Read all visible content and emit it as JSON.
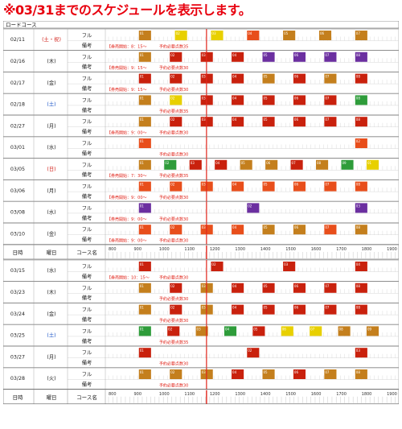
{
  "page_title": "※03/31までのスケジュールを表示します。",
  "course_label": "ロードコース",
  "columns": {
    "date": "日時",
    "weekday": "曜日",
    "course": "コース名"
  },
  "hours": [
    "800",
    "900",
    "1000",
    "1100",
    "1200",
    "1300",
    "1400",
    "1500",
    "1600",
    "1700",
    "1800",
    "1900"
  ],
  "row_labels": {
    "full": "フル",
    "note": "備考"
  },
  "notice_label": "【券売開始：",
  "reserve_note": "予約必要点数",
  "palette": {
    "brown": "#c47f1d",
    "red": "#c9210d",
    "orange": "#e84e1b",
    "yellow": "#e8d000",
    "green": "#2e9c3a",
    "purple": "#6b2fa0",
    "highlight": "#e1251b",
    "weekend": "#d2231c"
  },
  "days": [
    {
      "date": "02/11",
      "wd": "(土・祝)",
      "wd_red": true,
      "blocks": [
        [
          "01",
          "brown",
          1
        ],
        [
          "02",
          "yellow",
          1
        ],
        [
          "03",
          "yellow",
          1
        ],
        [
          "04",
          "orange",
          1
        ],
        [
          "05",
          "brown",
          1
        ],
        [
          "06",
          "brown",
          1
        ],
        [
          "07",
          "brown",
          1
        ]
      ],
      "notice": "8：15～",
      "pts": "35"
    },
    {
      "date": "02/16",
      "wd": "(木)",
      "wd_red": false,
      "blocks": [
        [
          "01",
          "brown",
          1
        ],
        [
          "02",
          "red",
          1
        ],
        [
          "03",
          "red",
          1
        ],
        [
          "04",
          "red",
          1
        ],
        [
          "05",
          "purple",
          1
        ],
        [
          "06",
          "purple",
          1
        ],
        [
          "07",
          "purple",
          1
        ],
        [
          "08",
          "purple",
          1
        ]
      ],
      "notice": "9：15～",
      "pts": "30"
    },
    {
      "date": "02/17",
      "wd": "(金)",
      "wd_red": false,
      "blocks": [
        [
          "01",
          "red",
          1
        ],
        [
          "02",
          "red",
          1
        ],
        [
          "03",
          "red",
          1
        ],
        [
          "04",
          "red",
          1
        ],
        [
          "05",
          "brown",
          1
        ],
        [
          "06",
          "red",
          1
        ],
        [
          "07",
          "brown",
          1
        ],
        [
          "08",
          "red",
          1
        ]
      ],
      "notice": "9：15～",
      "pts": "30"
    },
    {
      "date": "02/18",
      "wd": "(土)",
      "wd_red": false,
      "wd_blue": true,
      "blocks": [
        [
          "01",
          "brown",
          1
        ],
        [
          "02",
          "yellow",
          1
        ],
        [
          "03",
          "red",
          1
        ],
        [
          "04",
          "red",
          1
        ],
        [
          "05",
          "red",
          1
        ],
        [
          "06",
          "red",
          1
        ],
        [
          "07",
          "red",
          1
        ],
        [
          "08",
          "green",
          1
        ]
      ],
      "notice": "",
      "pts": "35"
    },
    {
      "date": "02/27",
      "wd": "(月)",
      "wd_red": false,
      "blocks": [
        [
          "01",
          "brown",
          1
        ],
        [
          "02",
          "red",
          1
        ],
        [
          "03",
          "red",
          1
        ],
        [
          "04",
          "red",
          1
        ],
        [
          "05",
          "red",
          1
        ],
        [
          "06",
          "red",
          1
        ],
        [
          "07",
          "red",
          1
        ],
        [
          "08",
          "red",
          1
        ]
      ],
      "notice": "9：00～",
      "pts": "30"
    },
    {
      "date": "03/01",
      "wd": "(水)",
      "wd_red": false,
      "blocks": [
        [
          "01",
          "orange",
          1
        ],
        [
          "02",
          "orange",
          1
        ]
      ],
      "notice": "",
      "pts": "30"
    },
    {
      "date": "03/05",
      "wd": "(日)",
      "wd_red": true,
      "blocks": [
        [
          "01",
          "brown",
          1
        ],
        [
          "02",
          "green",
          1
        ],
        [
          "03",
          "red",
          1
        ],
        [
          "04",
          "red",
          1
        ],
        [
          "05",
          "brown",
          1
        ],
        [
          "06",
          "brown",
          1
        ],
        [
          "07",
          "red",
          1
        ],
        [
          "08",
          "brown",
          1
        ],
        [
          "09",
          "green",
          1
        ],
        [
          "01",
          "yellow",
          1
        ]
      ],
      "notice": "7：30～",
      "pts": "35"
    },
    {
      "date": "03/06",
      "wd": "(月)",
      "wd_red": false,
      "blocks": [
        [
          "01",
          "orange",
          1
        ],
        [
          "02",
          "orange",
          1
        ],
        [
          "03",
          "orange",
          1
        ],
        [
          "04",
          "orange",
          1
        ],
        [
          "05",
          "orange",
          1
        ],
        [
          "06",
          "orange",
          1
        ],
        [
          "07",
          "orange",
          1
        ],
        [
          "08",
          "orange",
          1
        ]
      ],
      "notice": "9：00～",
      "pts": "30"
    },
    {
      "date": "03/08",
      "wd": "(水)",
      "wd_red": false,
      "blocks": [
        [
          "01",
          "purple",
          1
        ],
        [
          "02",
          "purple",
          1
        ],
        [
          "03",
          "purple",
          1
        ]
      ],
      "notice": "9：00～",
      "pts": "30"
    },
    {
      "date": "03/10",
      "wd": "(金)",
      "wd_red": false,
      "blocks": [
        [
          "01",
          "orange",
          1
        ],
        [
          "02",
          "orange",
          1
        ],
        [
          "03",
          "orange",
          1
        ],
        [
          "04",
          "orange",
          1
        ],
        [
          "05",
          "brown",
          1
        ],
        [
          "06",
          "brown",
          1
        ],
        [
          "07",
          "orange",
          1
        ],
        [
          "08",
          "brown",
          1
        ]
      ],
      "notice": "9：00～",
      "pts": "30"
    },
    {
      "header": true
    },
    {
      "date": "03/15",
      "wd": "(水)",
      "wd_red": false,
      "blocks": [
        [
          "01",
          "red",
          1
        ],
        [
          "02",
          "red",
          1
        ],
        [
          "03",
          "red",
          1
        ],
        [
          "04",
          "red",
          1
        ]
      ],
      "notice": "10：15～",
      "pts": "30"
    },
    {
      "date": "03/23",
      "wd": "(木)",
      "wd_red": false,
      "blocks": [
        [
          "01",
          "brown",
          1
        ],
        [
          "02",
          "red",
          1
        ],
        [
          "03",
          "brown",
          1
        ],
        [
          "04",
          "red",
          1
        ],
        [
          "05",
          "red",
          1
        ],
        [
          "06",
          "red",
          1
        ],
        [
          "07",
          "red",
          1
        ],
        [
          "08",
          "red",
          1
        ]
      ],
      "notice": "",
      "pts": "30"
    },
    {
      "date": "03/24",
      "wd": "(金)",
      "wd_red": false,
      "blocks": [
        [
          "01",
          "brown",
          1
        ],
        [
          "02",
          "red",
          1
        ],
        [
          "03",
          "brown",
          1
        ],
        [
          "04",
          "red",
          1
        ],
        [
          "05",
          "red",
          1
        ],
        [
          "06",
          "red",
          1
        ],
        [
          "07",
          "red",
          1
        ],
        [
          "08",
          "red",
          1
        ]
      ],
      "notice": "",
      "pts": "30"
    },
    {
      "date": "03/25",
      "wd": "(土)",
      "wd_red": false,
      "wd_blue": true,
      "blocks": [
        [
          "01",
          "green",
          1
        ],
        [
          "02",
          "red",
          1
        ],
        [
          "03",
          "brown",
          1
        ],
        [
          "04",
          "green",
          1
        ],
        [
          "05",
          "red",
          1
        ],
        [
          "06",
          "yellow",
          1
        ],
        [
          "07",
          "yellow",
          1
        ],
        [
          "08",
          "brown",
          1
        ],
        [
          "09",
          "brown",
          1
        ]
      ],
      "notice": "",
      "pts": "35"
    },
    {
      "date": "03/27",
      "wd": "(月)",
      "wd_red": false,
      "blocks": [
        [
          "01",
          "red",
          1
        ],
        [
          "02",
          "red",
          1
        ],
        [
          "03",
          "red",
          1
        ]
      ],
      "notice": "",
      "pts": "30"
    },
    {
      "date": "03/28",
      "wd": "(火)",
      "wd_red": false,
      "blocks": [
        [
          "01",
          "brown",
          1
        ],
        [
          "02",
          "brown",
          1
        ],
        [
          "03",
          "brown",
          1
        ],
        [
          "04",
          "red",
          1
        ],
        [
          "05",
          "brown",
          1
        ],
        [
          "06",
          "red",
          1
        ],
        [
          "07",
          "brown",
          1
        ],
        [
          "08",
          "brown",
          1
        ]
      ],
      "notice": "",
      "pts": "30"
    },
    {
      "header": true
    }
  ]
}
